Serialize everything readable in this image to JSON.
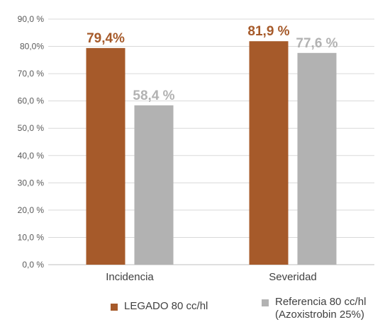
{
  "chart_data": {
    "type": "bar",
    "categories": [
      "Incidencia",
      "Severidad"
    ],
    "series": [
      {
        "name": "LEGADO 80 cc/hl",
        "values": [
          79.4,
          81.9
        ],
        "labels": [
          "79,4%",
          "81,9 %"
        ],
        "color": "#A65A2A"
      },
      {
        "name": "Referencia 80 cc/hl (Azoxistrobin 25%)",
        "name_lines": [
          "Referencia 80 cc/hl",
          "(Azoxistrobin 25%)"
        ],
        "values": [
          58.4,
          77.6
        ],
        "labels": [
          "58,4 %",
          "77,6 %"
        ],
        "color": "#B2B2B2"
      }
    ],
    "yticks": [
      0,
      10,
      20,
      30,
      40,
      50,
      60,
      70,
      80,
      90
    ],
    "ytick_labels": [
      "0,0 %",
      "10,0 %",
      "20,0 %",
      "30,0 %",
      "40,0 %",
      "50,0 %",
      "60,0 %",
      "70,0 %",
      "80,0%",
      "90,0 %"
    ],
    "ylim": [
      0,
      90
    ],
    "grid": true,
    "legend_position": "bottom",
    "colors": {
      "grid": "#D9D9D9",
      "axis": "#BFBFBF",
      "text": "#595959"
    }
  }
}
